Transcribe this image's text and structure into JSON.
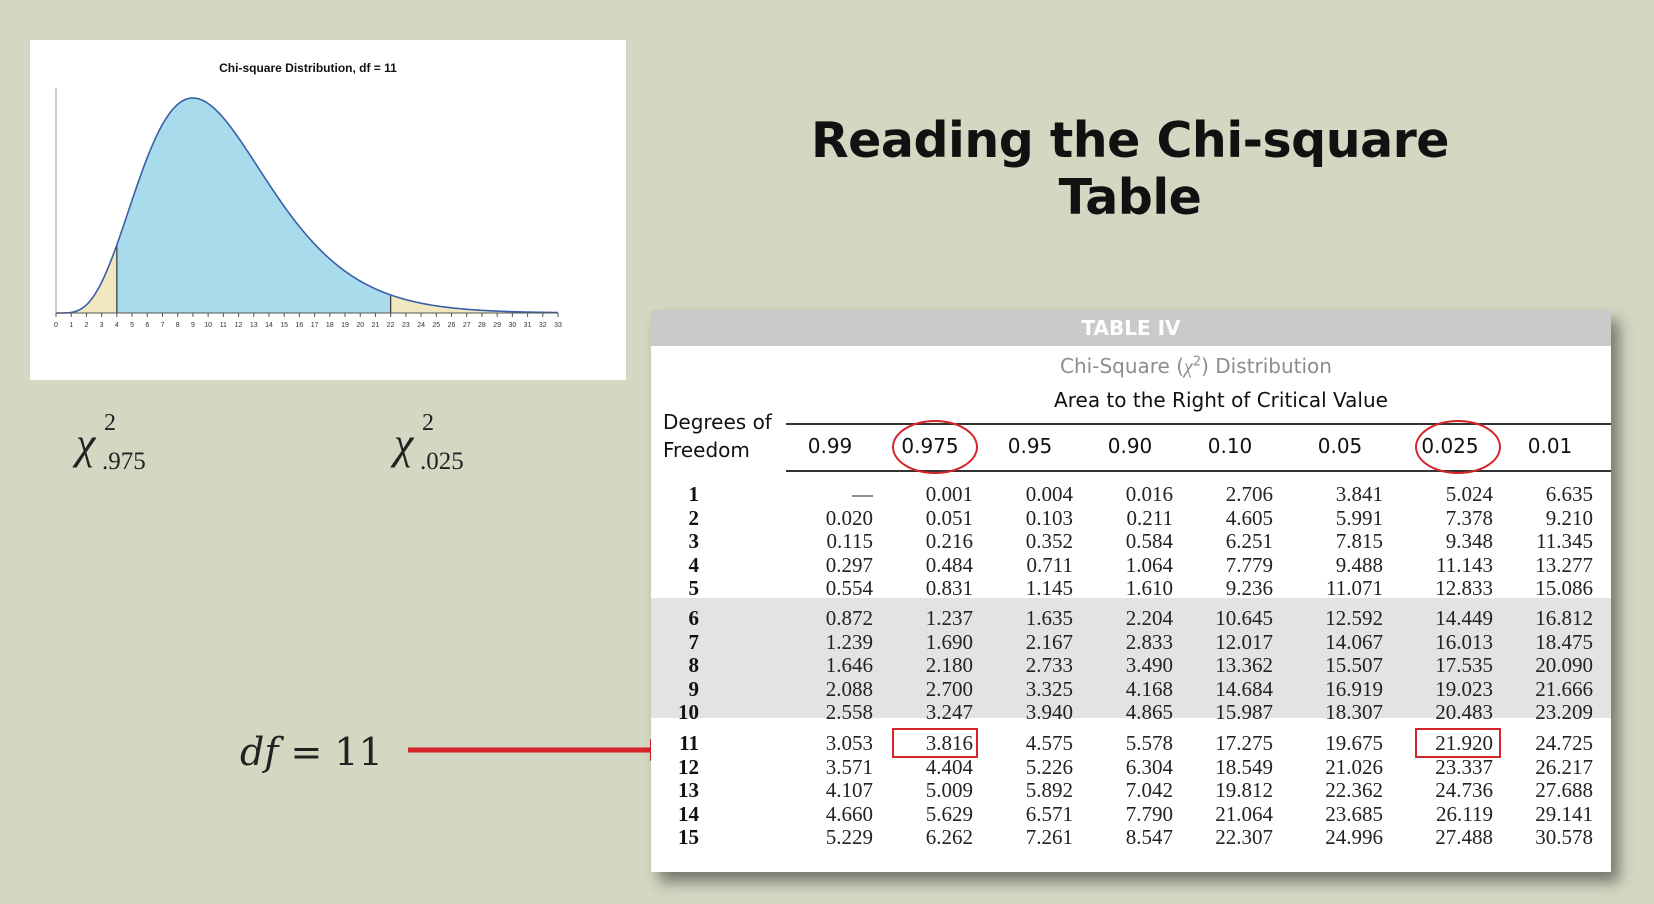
{
  "slide": {
    "title": "Reading the Chi-square Table",
    "left_label": {
      "symbol": "χ",
      "sup": "2",
      "sub": ".975"
    },
    "right_label": {
      "symbol": "χ",
      "sup": "2",
      "sub": ".025"
    },
    "df_annotation": {
      "var": "df",
      "eq": " = 11"
    }
  },
  "chart_data": {
    "type": "area",
    "title": "Chi-square Distribution, df = 11",
    "df": 11,
    "x_ticks": [
      0,
      1,
      2,
      3,
      4,
      5,
      6,
      7,
      8,
      9,
      10,
      11,
      12,
      13,
      14,
      15,
      16,
      17,
      18,
      19,
      20,
      21,
      22,
      23,
      24,
      25,
      26,
      27,
      28,
      29,
      30,
      31,
      32,
      33
    ],
    "xlim": [
      0,
      33
    ],
    "shaded_left_upper": 4,
    "shaded_right_lower": 22,
    "colors": {
      "body": "#a8dcec",
      "tails": "#f2e8c0",
      "curve": "#3b5ea8"
    }
  },
  "table": {
    "header": "TABLE IV",
    "subtitle_pre": "Chi-Square (",
    "subtitle_sym": "χ",
    "subtitle_sup": "2",
    "subtitle_post": ") Distribution",
    "area_label": "Area to the Right of Critical Value",
    "dof_label_1": "Degrees of",
    "dof_label_2": "Freedom",
    "columns": [
      "0.99",
      "0.975",
      "0.95",
      "0.90",
      "0.10",
      "0.05",
      "0.025",
      "0.01"
    ],
    "rows": [
      {
        "df": "1",
        "v": [
          "—",
          "0.001",
          "0.004",
          "0.016",
          "2.706",
          "3.841",
          "5.024",
          "6.635"
        ]
      },
      {
        "df": "2",
        "v": [
          "0.020",
          "0.051",
          "0.103",
          "0.211",
          "4.605",
          "5.991",
          "7.378",
          "9.210"
        ]
      },
      {
        "df": "3",
        "v": [
          "0.115",
          "0.216",
          "0.352",
          "0.584",
          "6.251",
          "7.815",
          "9.348",
          "11.345"
        ]
      },
      {
        "df": "4",
        "v": [
          "0.297",
          "0.484",
          "0.711",
          "1.064",
          "7.779",
          "9.488",
          "11.143",
          "13.277"
        ]
      },
      {
        "df": "5",
        "v": [
          "0.554",
          "0.831",
          "1.145",
          "1.610",
          "9.236",
          "11.071",
          "12.833",
          "15.086"
        ]
      },
      {
        "df": "6",
        "v": [
          "0.872",
          "1.237",
          "1.635",
          "2.204",
          "10.645",
          "12.592",
          "14.449",
          "16.812"
        ]
      },
      {
        "df": "7",
        "v": [
          "1.239",
          "1.690",
          "2.167",
          "2.833",
          "12.017",
          "14.067",
          "16.013",
          "18.475"
        ]
      },
      {
        "df": "8",
        "v": [
          "1.646",
          "2.180",
          "2.733",
          "3.490",
          "13.362",
          "15.507",
          "17.535",
          "20.090"
        ]
      },
      {
        "df": "9",
        "v": [
          "2.088",
          "2.700",
          "3.325",
          "4.168",
          "14.684",
          "16.919",
          "19.023",
          "21.666"
        ]
      },
      {
        "df": "10",
        "v": [
          "2.558",
          "3.247",
          "3.940",
          "4.865",
          "15.987",
          "18.307",
          "20.483",
          "23.209"
        ]
      },
      {
        "df": "11",
        "v": [
          "3.053",
          "3.816",
          "4.575",
          "5.578",
          "17.275",
          "19.675",
          "21.920",
          "24.725"
        ]
      },
      {
        "df": "12",
        "v": [
          "3.571",
          "4.404",
          "5.226",
          "6.304",
          "18.549",
          "21.026",
          "23.337",
          "26.217"
        ]
      },
      {
        "df": "13",
        "v": [
          "4.107",
          "5.009",
          "5.892",
          "7.042",
          "19.812",
          "22.362",
          "24.736",
          "27.688"
        ]
      },
      {
        "df": "14",
        "v": [
          "4.660",
          "5.629",
          "6.571",
          "7.790",
          "21.064",
          "23.685",
          "26.119",
          "29.141"
        ]
      },
      {
        "df": "15",
        "v": [
          "5.229",
          "6.262",
          "7.261",
          "8.547",
          "22.307",
          "24.996",
          "27.488",
          "30.578"
        ]
      }
    ],
    "highlight_row_df": "11",
    "highlight_columns": [
      "0.975",
      "0.025"
    ],
    "accent_color": "#d5242a"
  }
}
